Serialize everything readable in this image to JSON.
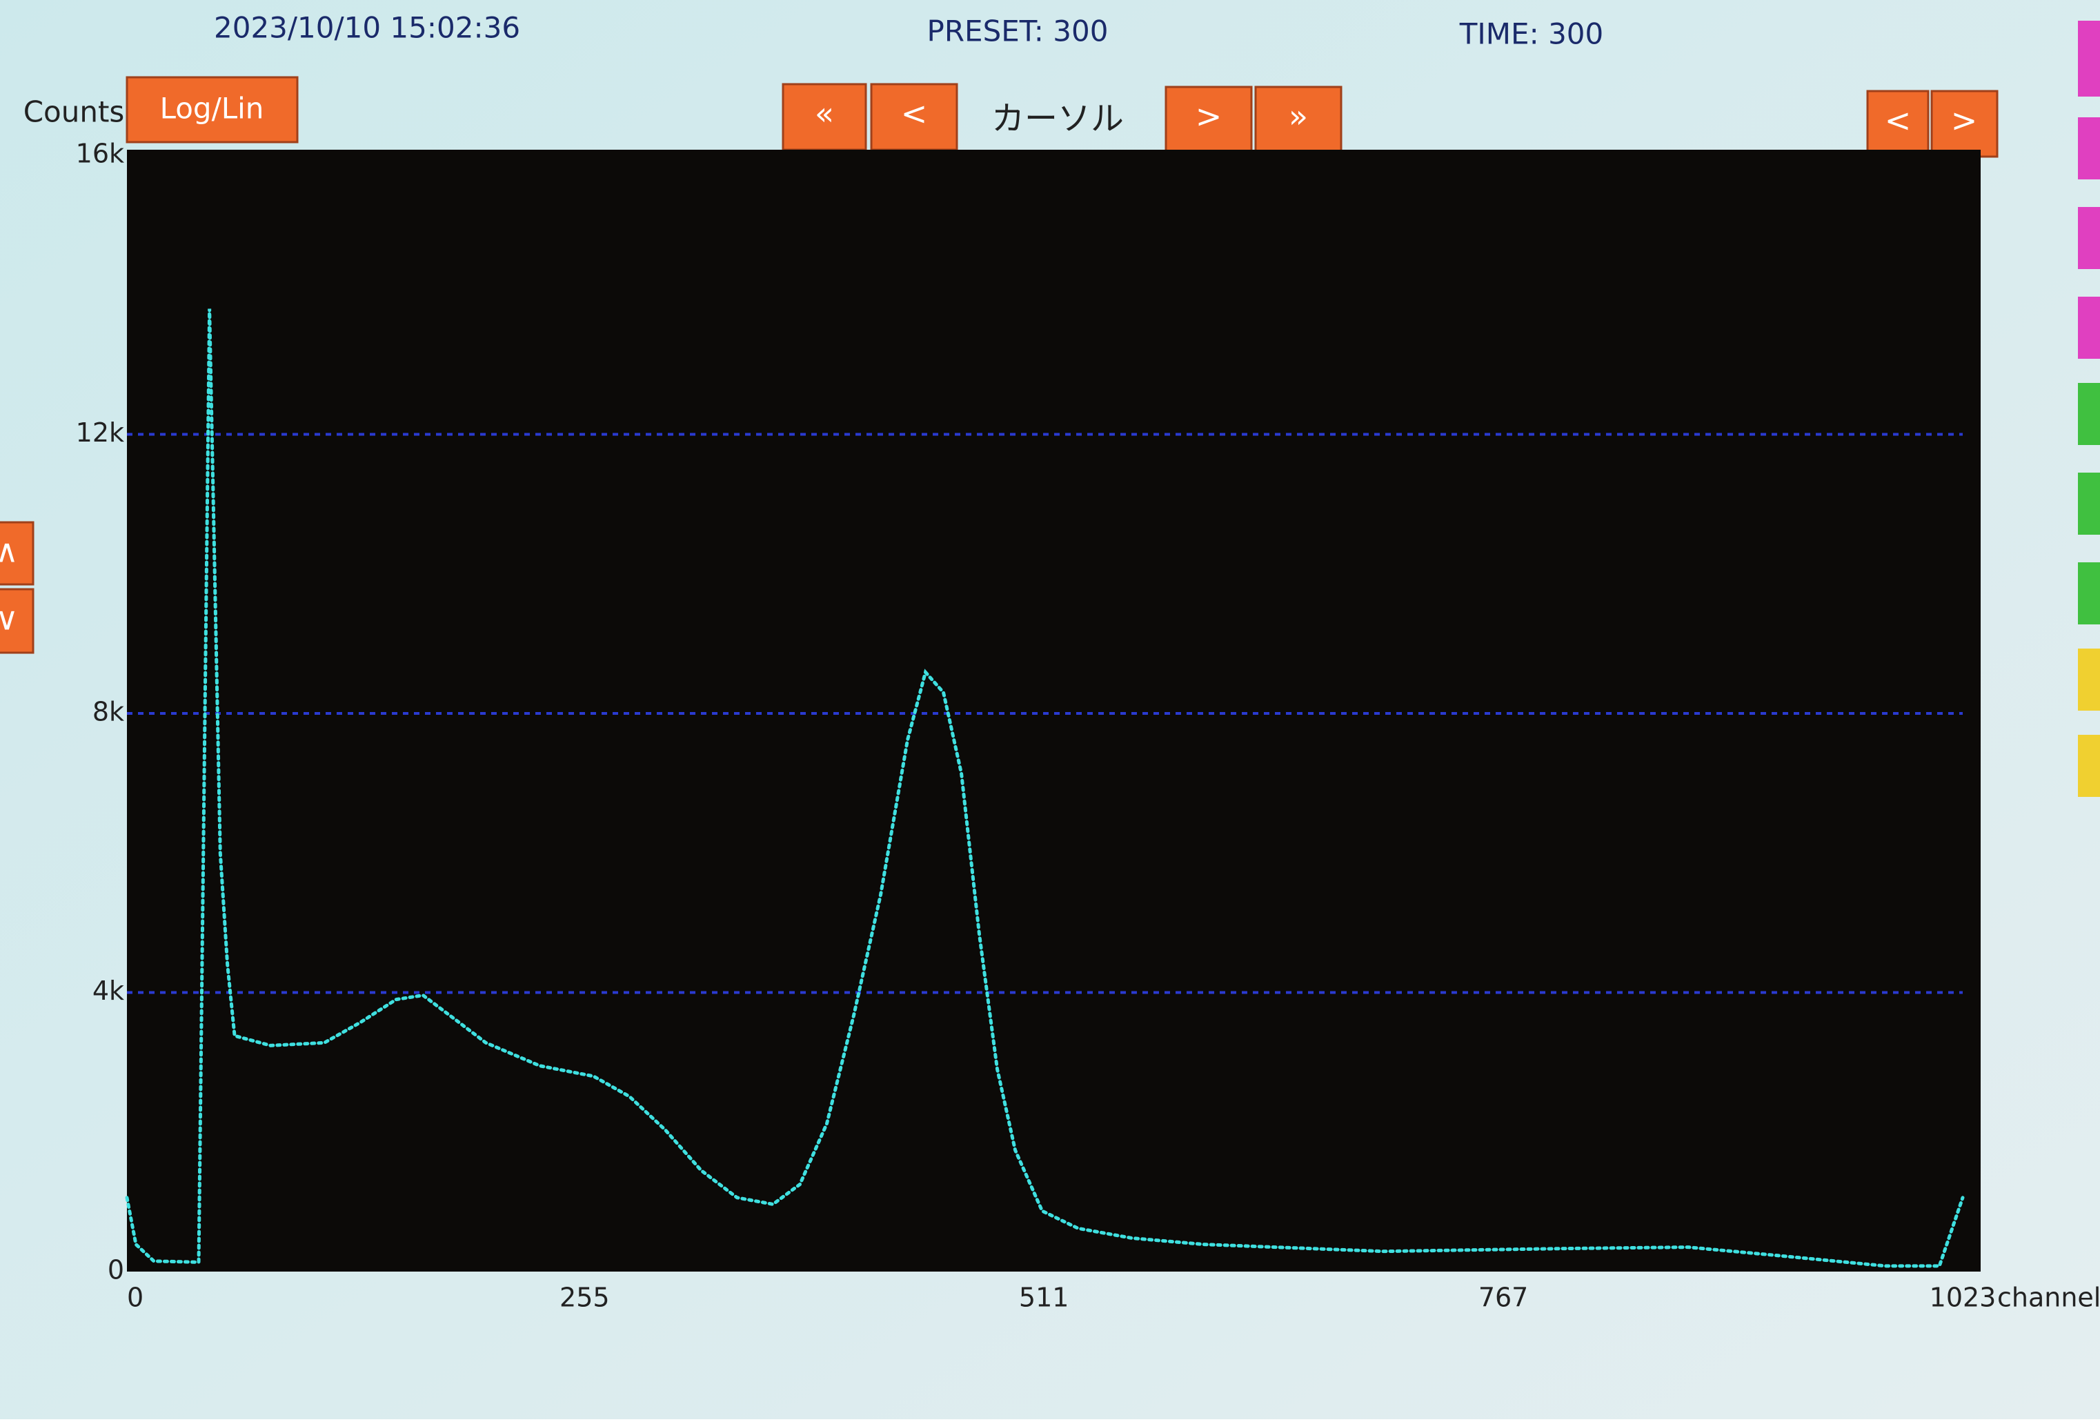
{
  "header": {
    "datetime": "2023/10/10 15:02:36",
    "preset": "PRESET: 300",
    "time": "TIME:  300"
  },
  "toolbar": {
    "counts_label": "Counts",
    "log_lin": "Log/Lin",
    "cursor_left": [
      "«",
      "<"
    ],
    "cursor_label": "カーソル",
    "cursor_right": [
      ">",
      "»"
    ],
    "scroll": [
      "<",
      ">"
    ],
    "side": [
      "∧",
      "∨"
    ]
  },
  "chart_data": {
    "type": "line",
    "color": "#3fe0e0",
    "x": [
      0,
      5,
      15,
      40,
      46,
      52,
      56,
      60,
      80,
      110,
      130,
      150,
      165,
      180,
      200,
      230,
      260,
      280,
      300,
      320,
      340,
      360,
      375,
      390,
      405,
      420,
      435,
      445,
      455,
      465,
      475,
      485,
      495,
      510,
      530,
      560,
      600,
      700,
      800,
      870,
      920,
      980,
      1010,
      1023
    ],
    "values": [
      1060,
      390,
      150,
      135,
      13800,
      6000,
      4400,
      3380,
      3240,
      3280,
      3570,
      3900,
      3960,
      3670,
      3280,
      2950,
      2800,
      2510,
      2030,
      1450,
      1060,
      965,
      1250,
      2120,
      3670,
      5400,
      7620,
      8590,
      8300,
      7140,
      4830,
      2900,
      1740,
      870,
      620,
      480,
      390,
      290,
      330,
      350,
      230,
      80,
      80,
      1060
    ],
    "xlim": [
      0,
      1023
    ],
    "xticks": [
      0,
      255,
      511,
      767,
      1023
    ],
    "xlabel": "channel",
    "ylim": [
      0,
      16000
    ],
    "yticks": [
      0,
      {
        "value": 4000,
        "label": "4k"
      },
      {
        "value": 8000,
        "label": "8k"
      },
      {
        "value": 12000,
        "label": "12k"
      },
      {
        "value": 16000,
        "label": "16k"
      }
    ],
    "grid": true
  }
}
